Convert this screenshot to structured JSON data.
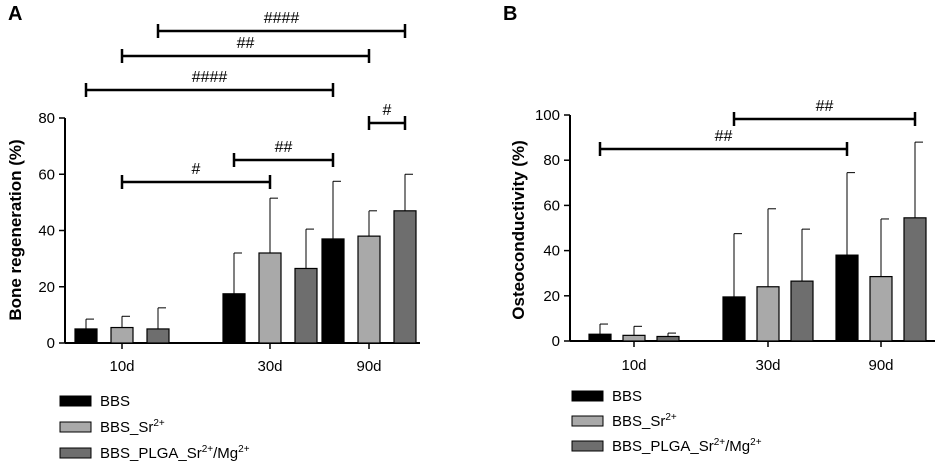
{
  "chart_data": [
    {
      "type": "bar",
      "panel_label": "A",
      "ylabel": "Bone regeneration (%)",
      "xlabel": "",
      "ylim": [
        0,
        80
      ],
      "yticks": [
        0,
        20,
        40,
        60,
        80
      ],
      "categories": [
        "10d",
        "30d",
        "90d"
      ],
      "series": [
        {
          "name": "BBS",
          "values": [
            5,
            17.5,
            37
          ],
          "errors": [
            3.5,
            14.5,
            20.5
          ]
        },
        {
          "name": "BBS_Sr2+",
          "values": [
            5.5,
            32,
            38
          ],
          "errors": [
            4,
            19.5,
            9
          ]
        },
        {
          "name": "BBS_PLGA_Sr2+/Mg2+",
          "values": [
            5,
            26.5,
            47
          ],
          "errors": [
            7.5,
            14,
            13
          ]
        }
      ],
      "significance": [
        {
          "label": "####",
          "from": "10d BBS_PLGA_Sr2+/Mg2+",
          "to": "90d BBS_PLGA_Sr2+/Mg2+"
        },
        {
          "label": "##",
          "from": "10d BBS_Sr2+",
          "to": "90d BBS_Sr2+"
        },
        {
          "label": "####",
          "from": "10d BBS",
          "to": "90d BBS"
        },
        {
          "label": "#",
          "from": "90d BBS_Sr2+",
          "to": "90d BBS_PLGA_Sr2+/Mg2+"
        },
        {
          "label": "##",
          "from": "30d BBS",
          "to": "90d BBS"
        },
        {
          "label": "#",
          "from": "10d BBS_Sr2+",
          "to": "30d BBS_Sr2+"
        }
      ]
    },
    {
      "type": "bar",
      "panel_label": "B",
      "ylabel": "Osteoconductivity (%)",
      "xlabel": "",
      "ylim": [
        0,
        100
      ],
      "yticks": [
        0,
        20,
        40,
        60,
        80,
        100
      ],
      "categories": [
        "10d",
        "30d",
        "90d"
      ],
      "series": [
        {
          "name": "BBS",
          "values": [
            3,
            19.5,
            38
          ],
          "errors": [
            4.5,
            28,
            36.5
          ]
        },
        {
          "name": "BBS_Sr2+",
          "values": [
            2.5,
            24,
            28.5
          ],
          "errors": [
            4,
            34.5,
            25.5
          ]
        },
        {
          "name": "BBS_PLGA_Sr2+/Mg2+",
          "values": [
            2,
            26.5,
            54.5
          ],
          "errors": [
            1.5,
            23,
            33.5
          ]
        }
      ],
      "significance": [
        {
          "label": "##",
          "from": "30d BBS",
          "to": "90d BBS_PLGA_Sr2+/Mg2+"
        },
        {
          "label": "##",
          "from": "10d BBS",
          "to": "90d BBS"
        }
      ]
    }
  ],
  "legend": {
    "items": [
      {
        "base": "BBS",
        "sup1": "",
        "mid": "",
        "sup2": "",
        "color": "#000000"
      },
      {
        "base": "BBS_Sr",
        "sup1": "2+",
        "mid": "",
        "sup2": "",
        "color": "#a9a9a9"
      },
      {
        "base": "BBS_PLGA_Sr",
        "sup1": "2+",
        "mid": "/Mg",
        "sup2": "2+",
        "color": "#6e6e6e"
      }
    ]
  },
  "colors": {
    "series": [
      "#000000",
      "#a9a9a9",
      "#6e6e6e"
    ],
    "axis": "#000000"
  }
}
